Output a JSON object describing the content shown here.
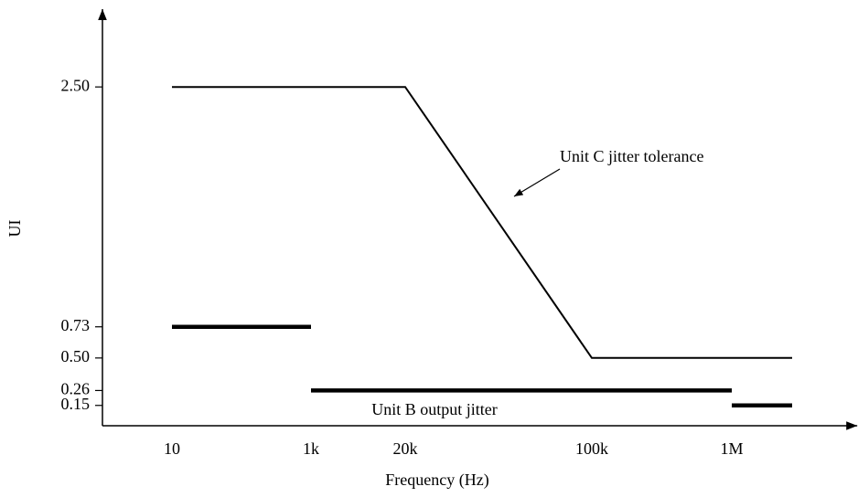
{
  "chart_data": {
    "type": "line",
    "x_label": "Frequency (Hz)",
    "y_label": "UI",
    "xlim": [
      1,
      8000000
    ],
    "xticks": [
      10,
      {
        "value": 1000,
        "label": "1k"
      },
      {
        "value": 20000,
        "label": "20k"
      },
      {
        "value": 100000,
        "label": "100k"
      },
      {
        "value": 1000000,
        "label": "1M"
      }
    ],
    "ylim": [
      0,
      3.0
    ],
    "yticks": [
      0.15,
      0.26,
      {
        "value": 0.5,
        "label": "0.50"
      },
      0.73,
      {
        "value": 2.5,
        "label": "2.50"
      }
    ],
    "series": [
      {
        "name": "Unit C jitter tolerance",
        "color": "#000000",
        "x": [
          10,
          20000,
          100000,
          2700000
        ],
        "values": [
          2.5,
          2.5,
          0.5,
          0.5
        ]
      },
      {
        "name": "Unit B output jitter",
        "color": "#000000",
        "x": [
          10,
          1000,
          1000,
          1000,
          1000000,
          1000000,
          1000000,
          2700000
        ],
        "values": [
          0.73,
          0.73,
          null,
          0.26,
          0.26,
          null,
          0.15,
          0.15
        ]
      }
    ]
  }
}
